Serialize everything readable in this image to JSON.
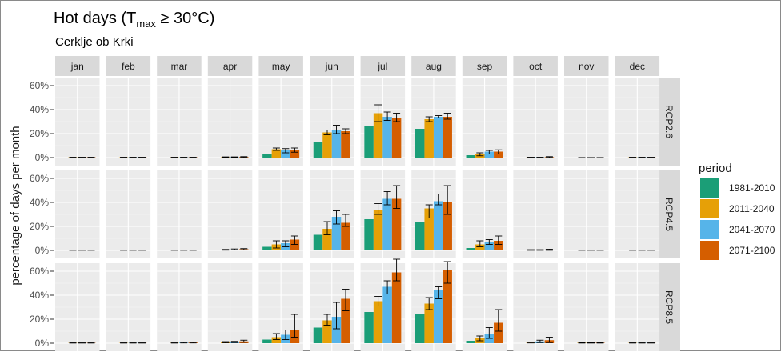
{
  "title_main": "Hot days (T",
  "title_sub": "max",
  "title_rest": " ≥ 30°C)",
  "subtitle": "Cerklje ob Krki",
  "ylabel": "percentage of days per month",
  "legend_title": "period",
  "chart_data": {
    "type": "bar",
    "facet_cols": [
      "jan",
      "feb",
      "mar",
      "apr",
      "may",
      "jun",
      "jul",
      "aug",
      "sep",
      "oct",
      "nov",
      "dec"
    ],
    "facet_rows": [
      "RCP2.6",
      "RCP4.5",
      "RCP8.5"
    ],
    "ylim": [
      0,
      70
    ],
    "yticks": [
      0,
      20,
      40,
      60
    ],
    "ytick_labels": [
      "0%",
      "20%",
      "40%",
      "60%"
    ],
    "grid": true,
    "legend_position": "right",
    "series": [
      {
        "name": "1981-2010",
        "color": "#1b9e77"
      },
      {
        "name": "2011-2040",
        "color": "#e6a007"
      },
      {
        "name": "2041-2070",
        "color": "#56b4e9"
      },
      {
        "name": "2071-2100",
        "color": "#d55e00"
      }
    ],
    "panels": {
      "RCP2.6": {
        "jan": [
          [
            0,
            null,
            null
          ],
          [
            0.2,
            0.1,
            0.3
          ],
          [
            0.2,
            0.1,
            0.3
          ],
          [
            0.2,
            0.1,
            0.3
          ]
        ],
        "feb": [
          [
            0,
            null,
            null
          ],
          [
            0.2,
            0.1,
            0.3
          ],
          [
            0.2,
            0.1,
            0.3
          ],
          [
            0.2,
            0.1,
            0.3
          ]
        ],
        "mar": [
          [
            0,
            null,
            null
          ],
          [
            0.2,
            0.1,
            0.3
          ],
          [
            0.2,
            0.1,
            0.3
          ],
          [
            0.2,
            0.1,
            0.3
          ]
        ],
        "apr": [
          [
            0,
            null,
            null
          ],
          [
            0.3,
            0.1,
            0.6
          ],
          [
            0.3,
            0.1,
            0.6
          ],
          [
            0.5,
            0.2,
            0.8
          ]
        ],
        "may": [
          [
            3,
            null,
            null
          ],
          [
            7,
            6,
            8
          ],
          [
            6,
            4,
            7.5
          ],
          [
            6,
            4.5,
            8
          ]
        ],
        "jun": [
          [
            13,
            null,
            null
          ],
          [
            21,
            19,
            23
          ],
          [
            23,
            20,
            27
          ],
          [
            22,
            20,
            24
          ]
        ],
        "jul": [
          [
            26,
            null,
            null
          ],
          [
            37,
            30,
            44
          ],
          [
            34,
            31,
            38
          ],
          [
            33,
            30,
            37
          ]
        ],
        "aug": [
          [
            24,
            null,
            null
          ],
          [
            32,
            30,
            34
          ],
          [
            34,
            33,
            35
          ],
          [
            34,
            32,
            37
          ]
        ],
        "sep": [
          [
            2,
            null,
            null
          ],
          [
            3,
            1.5,
            4
          ],
          [
            5,
            3,
            6
          ],
          [
            5,
            3,
            6.5
          ]
        ],
        "oct": [
          [
            0,
            null,
            null
          ],
          [
            0.2,
            0.1,
            0.3
          ],
          [
            0.2,
            0.1,
            0.3
          ],
          [
            0.4,
            0.1,
            0.8
          ]
        ],
        "nov": [
          [
            0,
            null,
            null
          ],
          [
            0,
            0,
            0
          ],
          [
            0,
            0,
            0
          ],
          [
            0,
            0,
            0
          ]
        ],
        "dec": [
          [
            0,
            null,
            null
          ],
          [
            0.2,
            0.1,
            0.3
          ],
          [
            0.2,
            0.1,
            0.3
          ],
          [
            0.2,
            0.1,
            0.3
          ]
        ]
      },
      "RCP4.5": {
        "jan": [
          [
            0,
            null,
            null
          ],
          [
            0.2,
            0.1,
            0.3
          ],
          [
            0.2,
            0.1,
            0.3
          ],
          [
            0.2,
            0.1,
            0.3
          ]
        ],
        "feb": [
          [
            0,
            null,
            null
          ],
          [
            0.2,
            0.1,
            0.3
          ],
          [
            0.2,
            0.1,
            0.3
          ],
          [
            0.2,
            0.1,
            0.3
          ]
        ],
        "mar": [
          [
            0,
            null,
            null
          ],
          [
            0.2,
            0.1,
            0.3
          ],
          [
            0.2,
            0.1,
            0.3
          ],
          [
            0.2,
            0.1,
            0.3
          ]
        ],
        "apr": [
          [
            0,
            null,
            null
          ],
          [
            0.5,
            0.2,
            0.8
          ],
          [
            0.7,
            0.3,
            1.2
          ],
          [
            1,
            0.5,
            1.5
          ]
        ],
        "may": [
          [
            3,
            null,
            null
          ],
          [
            5,
            2,
            8
          ],
          [
            6,
            3,
            8
          ],
          [
            9,
            5,
            12
          ]
        ],
        "jun": [
          [
            13,
            null,
            null
          ],
          [
            18,
            13,
            24
          ],
          [
            28,
            22,
            33
          ],
          [
            23,
            20,
            30
          ]
        ],
        "jul": [
          [
            26,
            null,
            null
          ],
          [
            34,
            30,
            39
          ],
          [
            43,
            38,
            49
          ],
          [
            43,
            35,
            54
          ]
        ],
        "aug": [
          [
            24,
            null,
            null
          ],
          [
            35,
            27,
            38
          ],
          [
            41,
            38,
            47
          ],
          [
            40,
            30,
            54
          ]
        ],
        "sep": [
          [
            2,
            null,
            null
          ],
          [
            5,
            3,
            8
          ],
          [
            7,
            5,
            9
          ],
          [
            8,
            5,
            12
          ]
        ],
        "oct": [
          [
            0,
            null,
            null
          ],
          [
            0.3,
            0.1,
            0.6
          ],
          [
            0.3,
            0.1,
            0.6
          ],
          [
            0.5,
            0.1,
            1
          ]
        ],
        "nov": [
          [
            0,
            null,
            null
          ],
          [
            0.2,
            0.1,
            0.3
          ],
          [
            0.2,
            0.1,
            0.3
          ],
          [
            0.2,
            0.1,
            0.3
          ]
        ],
        "dec": [
          [
            0,
            null,
            null
          ],
          [
            0.2,
            0.1,
            0.3
          ],
          [
            0.2,
            0.1,
            0.3
          ],
          [
            0.2,
            0.1,
            0.3
          ]
        ]
      },
      "RCP8.5": {
        "jan": [
          [
            0,
            null,
            null
          ],
          [
            0.2,
            0.1,
            0.3
          ],
          [
            0.2,
            0.1,
            0.3
          ],
          [
            0.2,
            0.1,
            0.3
          ]
        ],
        "feb": [
          [
            0,
            null,
            null
          ],
          [
            0.2,
            0.1,
            0.3
          ],
          [
            0.2,
            0.1,
            0.3
          ],
          [
            0.2,
            0.1,
            0.3
          ]
        ],
        "mar": [
          [
            0,
            null,
            null
          ],
          [
            0.2,
            0.1,
            0.3
          ],
          [
            0.5,
            0.2,
            0.8
          ],
          [
            0.5,
            0.2,
            0.8
          ]
        ],
        "apr": [
          [
            0,
            null,
            null
          ],
          [
            0.8,
            0.3,
            1.3
          ],
          [
            1,
            0.5,
            1.5
          ],
          [
            1.5,
            0.8,
            2.5
          ]
        ],
        "may": [
          [
            3,
            null,
            null
          ],
          [
            5,
            3,
            8
          ],
          [
            7,
            3,
            11
          ],
          [
            11,
            5,
            24
          ]
        ],
        "jun": [
          [
            13,
            null,
            null
          ],
          [
            19,
            15,
            24
          ],
          [
            22,
            12,
            34
          ],
          [
            37,
            27,
            45
          ]
        ],
        "jul": [
          [
            26,
            null,
            null
          ],
          [
            35,
            31,
            39
          ],
          [
            47,
            41,
            52
          ],
          [
            59,
            52,
            70
          ]
        ],
        "aug": [
          [
            24,
            null,
            null
          ],
          [
            33,
            28,
            38
          ],
          [
            44,
            37,
            47
          ],
          [
            61,
            50,
            68
          ]
        ],
        "sep": [
          [
            2,
            null,
            null
          ],
          [
            4,
            2,
            6
          ],
          [
            8,
            4,
            13
          ],
          [
            17,
            10,
            28
          ]
        ],
        "oct": [
          [
            0,
            null,
            null
          ],
          [
            0.5,
            0.2,
            0.8
          ],
          [
            1.5,
            0.5,
            2.5
          ],
          [
            2.5,
            0.5,
            5
          ]
        ],
        "nov": [
          [
            0,
            null,
            null
          ],
          [
            0.3,
            0.1,
            0.6
          ],
          [
            0.3,
            0.1,
            0.6
          ],
          [
            0.3,
            0.1,
            0.6
          ]
        ],
        "dec": [
          [
            0,
            null,
            null
          ],
          [
            0.2,
            0.1,
            0.3
          ],
          [
            0.2,
            0.1,
            0.3
          ],
          [
            0.2,
            0.1,
            0.3
          ]
        ]
      }
    }
  }
}
